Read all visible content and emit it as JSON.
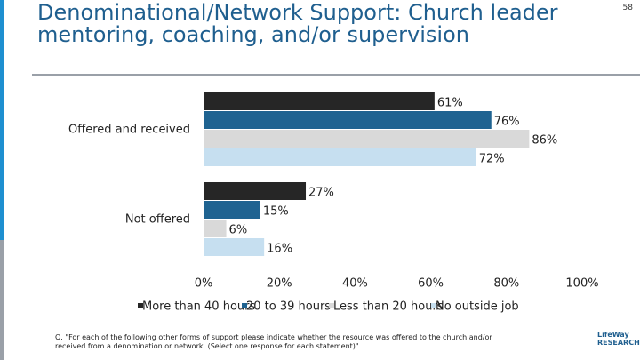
{
  "page_number": "58",
  "logo": "LifeWay RESEARCH",
  "footnote": "Q. \"For each of the following other forms of support please indicate whether the resource was offered to the church and/or received from a denomination or network. (Select one response for each statement)\"",
  "chart_data": {
    "type": "bar",
    "orientation": "horizontal",
    "title": "Denominational/Network Support: Church leader mentoring, coaching, and/or supervision",
    "categories": [
      "Offered and received",
      "Not offered"
    ],
    "series": [
      {
        "name": "More than 40 hours",
        "color": "#262626",
        "values": [
          61,
          27
        ],
        "value_labels": [
          "61%",
          "27%"
        ]
      },
      {
        "name": "20 to 39 hours",
        "color": "#1f6391",
        "values": [
          76,
          15
        ],
        "value_labels": [
          "76%",
          "15%"
        ]
      },
      {
        "name": "Less than 20 hours",
        "color": "#d9d9d9",
        "values": [
          86,
          6
        ],
        "value_labels": [
          "86%",
          "6%"
        ]
      },
      {
        "name": "No outside job",
        "color": "#c6dff0",
        "values": [
          72,
          16
        ],
        "value_labels": [
          "72%",
          "16%"
        ]
      }
    ],
    "xlim": [
      0,
      100
    ],
    "xticks": [
      {
        "value": 0,
        "label": "0%"
      },
      {
        "value": 20,
        "label": "20%"
      },
      {
        "value": 40,
        "label": "40%"
      },
      {
        "value": 60,
        "label": "60%"
      },
      {
        "value": 80,
        "label": "80%"
      },
      {
        "value": 100,
        "label": "100%"
      }
    ],
    "legend": "bottom",
    "grid": false
  }
}
